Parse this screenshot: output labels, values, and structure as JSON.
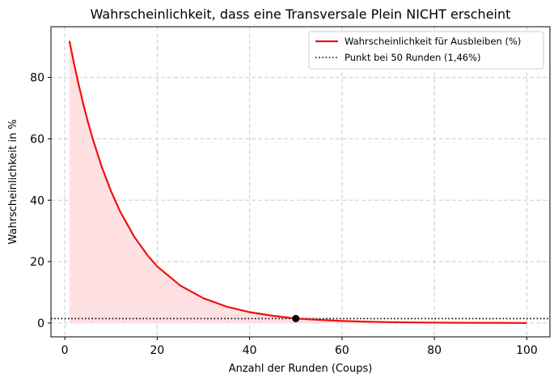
{
  "chart_data": {
    "type": "line",
    "title": "Wahrscheinlichkeit, dass eine Transversale Plein NICHT erscheint",
    "xlabel": "Anzahl der Runden (Coups)",
    "ylabel": "Wahrscheinlichkeit in %",
    "xlim": [
      -3,
      105
    ],
    "ylim": [
      -4.5,
      96.5
    ],
    "xticks": [
      0,
      20,
      40,
      60,
      80,
      100
    ],
    "yticks": [
      0,
      20,
      40,
      60,
      80
    ],
    "grid": true,
    "legend_position": "top-right",
    "series": [
      {
        "name": "Wahrscheinlichkeit für Ausbleiben (%)",
        "color": "#ee1111",
        "fill_color": "#ffe0e3",
        "x": [
          1,
          2,
          3,
          4,
          5,
          6,
          8,
          10,
          12,
          15,
          18,
          20,
          25,
          30,
          35,
          40,
          45,
          50,
          55,
          60,
          65,
          70,
          75,
          80,
          85,
          90,
          95,
          100
        ],
        "y": [
          91.89,
          84.44,
          77.6,
          71.31,
          65.52,
          60.21,
          50.85,
          42.93,
          36.25,
          28.17,
          21.88,
          18.43,
          12.2,
          8.08,
          5.35,
          3.54,
          2.35,
          1.46,
          1.03,
          0.68,
          0.45,
          0.3,
          0.2,
          0.13,
          0.09,
          0.06,
          0.04,
          0.02
        ]
      }
    ],
    "reference_line": {
      "name": "Punkt bei 50 Runden (1,46%)",
      "y": 1.46,
      "color": "#000000"
    },
    "marker_point": {
      "x": 50,
      "y": 1.46,
      "color": "#000000"
    }
  }
}
